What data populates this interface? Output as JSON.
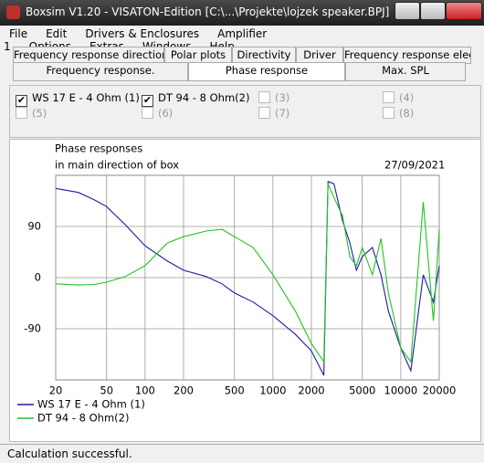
{
  "window": {
    "title": "Boxsim V1.20 - VISATON-Edition [C:\\...\\Projekte\\lojzek speaker.BPJ]"
  },
  "menu": [
    "File",
    "Edit",
    "Drivers & Enclosures",
    "Amplifier 1",
    "Options",
    "Extras",
    "Windows",
    "Help"
  ],
  "tabs": {
    "row1": [
      "Frequency response directions",
      "Polar plots",
      "Directivity",
      "Driver",
      "Frequency response electr.."
    ],
    "row2": [
      "Frequency response.",
      "Phase response",
      "Max. SPL"
    ],
    "active": 1
  },
  "drivers": [
    {
      "label": "WS 17 E - 4 Ohm  (1)",
      "checked": true
    },
    {
      "label": "DT 94 - 8 Ohm(2)",
      "checked": true
    },
    {
      "label": "(3)",
      "checked": false
    },
    {
      "label": "(4)",
      "checked": false
    },
    {
      "label": "(5)",
      "checked": false
    },
    {
      "label": "(6)",
      "checked": false
    },
    {
      "label": "(7)",
      "checked": false
    },
    {
      "label": "(8)",
      "checked": false
    }
  ],
  "chart_data": {
    "type": "line",
    "title": "Phase responses",
    "subtitle": "in main direction of box",
    "date": "27/09/2021",
    "xlog": true,
    "grid": true,
    "x": [
      20,
      30,
      40,
      50,
      70,
      100,
      150,
      200,
      300,
      400,
      500,
      700,
      1000,
      1500,
      2000,
      2500,
      2700,
      3000,
      3500,
      4000,
      4500,
      5000,
      6000,
      7000,
      8000,
      10000,
      12000,
      15000,
      18000,
      20000
    ],
    "xlim": [
      20,
      20000
    ],
    "xticks": [
      20,
      50,
      100,
      200,
      500,
      1000,
      2000,
      5000,
      10000,
      20000
    ],
    "ylim": [
      -180,
      180
    ],
    "yticks": [
      -90,
      0,
      90
    ],
    "series": [
      {
        "name": "WS 17 E - 4 Ohm  (1)",
        "color": "#1c1ca0",
        "values": [
          157,
          150,
          137,
          125,
          93,
          56,
          29,
          13,
          2,
          -11,
          -27,
          -43,
          -67,
          -100,
          -129,
          -172,
          169,
          165,
          101,
          61,
          13,
          37,
          53,
          5,
          -59,
          -124,
          -164,
          5,
          -43,
          21
        ]
      },
      {
        "name": "DT 94 - 8 Ohm(2)",
        "color": "#22c322",
        "values": [
          -11,
          -13,
          -12,
          -8,
          2,
          21,
          61,
          72,
          82,
          85,
          72,
          53,
          5,
          -59,
          -116,
          -148,
          165,
          141,
          109,
          37,
          21,
          53,
          5,
          69,
          -27,
          -124,
          -148,
          133,
          -76,
          85
        ]
      }
    ]
  },
  "status": "Calculation successful."
}
